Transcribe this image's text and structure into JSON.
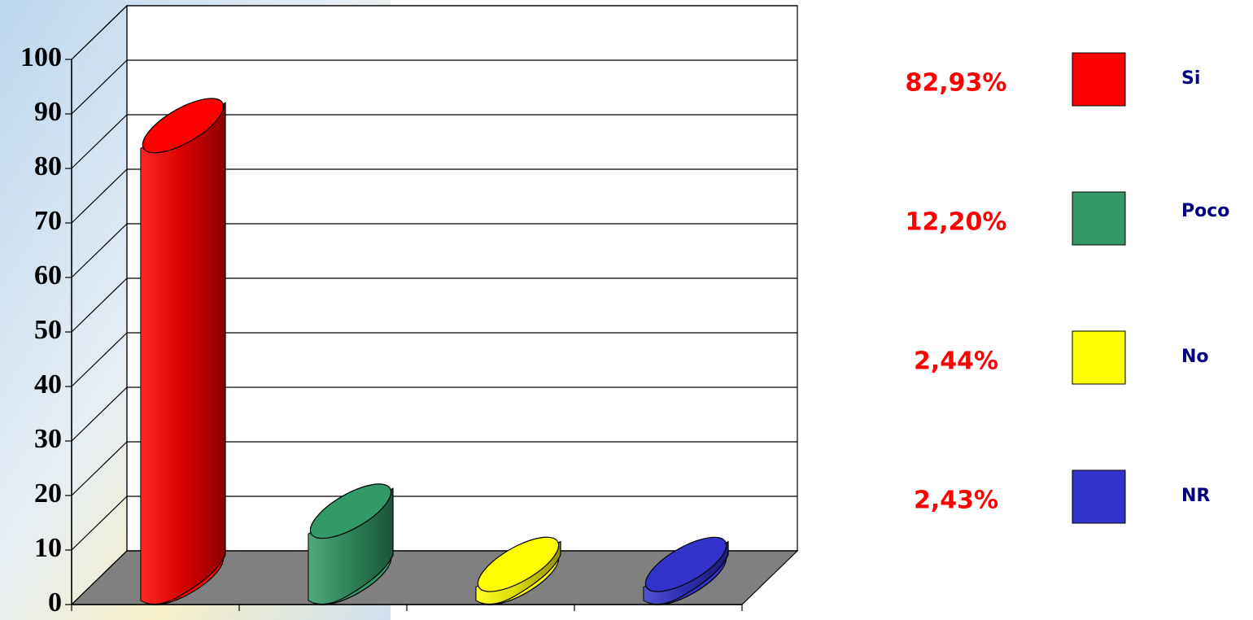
{
  "chart_data": {
    "type": "bar3d",
    "categories": [
      "Si",
      "Poco",
      "No",
      "NR"
    ],
    "values": [
      82.93,
      12.2,
      2.44,
      2.43
    ],
    "value_labels": [
      "82,93%",
      "12,20%",
      "2,44%",
      "2,43%"
    ],
    "colors": [
      "#ff0000",
      "#339966",
      "#ffff00",
      "#3333cc"
    ],
    "ylim": [
      0,
      100
    ],
    "yticks": [
      0,
      10,
      20,
      30,
      40,
      50,
      60,
      70,
      80,
      90,
      100
    ],
    "grid": true
  }
}
